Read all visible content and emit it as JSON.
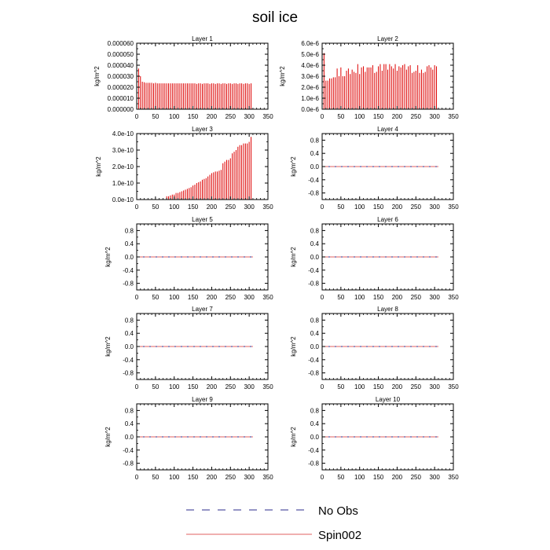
{
  "title": "soil ice",
  "legend": {
    "placement": "bottom-center",
    "items": [
      {
        "label": "No Obs",
        "color": "#2b2b8c",
        "style": "dashed"
      },
      {
        "label": "Spin002",
        "color": "#e06060",
        "style": "solid"
      }
    ]
  },
  "chart_data": [
    {
      "type": "bar",
      "title": "Layer 1",
      "ylabel": "kg/m^2",
      "xlim": [
        0,
        350
      ],
      "xticks": [
        "0",
        "50",
        "100",
        "150",
        "200",
        "250",
        "300",
        "350"
      ],
      "ylim": [
        0,
        6e-05
      ],
      "yticks": [
        "0.000000",
        "0.000010",
        "0.000020",
        "0.000030",
        "0.000040",
        "0.000050",
        "0.000060"
      ],
      "bar_x_start": 0,
      "bar_x_step": 5,
      "bar_color": "#dd0000",
      "values": [
        5.2e-05,
        3.7e-05,
        3e-05,
        2.5e-05,
        2.45e-05,
        2.4e-05,
        2.4e-05,
        2.4e-05,
        2.4e-05,
        2.35e-05,
        2.4e-05,
        2.35e-05,
        2.35e-05,
        2.35e-05,
        2.35e-05,
        2.35e-05,
        2.35e-05,
        2.35e-05,
        2.35e-05,
        2.35e-05,
        2.35e-05,
        2.35e-05,
        2.35e-05,
        2.35e-05,
        2.35e-05,
        2.35e-05,
        2.35e-05,
        2.35e-05,
        2.35e-05,
        2.35e-05,
        2.35e-05,
        2.35e-05,
        2.3e-05,
        2.35e-05,
        2.35e-05,
        2.3e-05,
        2.35e-05,
        2.35e-05,
        2.35e-05,
        2.3e-05,
        2.35e-05,
        2.35e-05,
        2.3e-05,
        2.35e-05,
        2.35e-05,
        2.3e-05,
        2.35e-05,
        2.35e-05,
        2.3e-05,
        2.35e-05,
        2.35e-05,
        2.3e-05,
        2.35e-05,
        2.35e-05,
        2.3e-05,
        2.35e-05,
        2.35e-05,
        2.3e-05,
        2.35e-05,
        2.35e-05,
        2.3e-05,
        2.35e-05
      ]
    },
    {
      "type": "bar",
      "title": "Layer 2",
      "ylabel": "kg/m^2",
      "xlim": [
        0,
        350
      ],
      "xticks": [
        "0",
        "50",
        "100",
        "150",
        "200",
        "250",
        "300",
        "350"
      ],
      "ylim": [
        0,
        6e-06
      ],
      "yticks": [
        "0.0e-6",
        "1.0e-6",
        "2.0e-6",
        "3.0e-6",
        "4.0e-6",
        "5.0e-6",
        "6.0e-6"
      ],
      "bar_x_start": 0,
      "bar_x_step": 5,
      "bar_color": "#dd0000",
      "values": [
        5.2e-06,
        5.1e-06,
        2.6e-06,
        2.6e-06,
        2.8e-06,
        2.8e-06,
        2.9e-06,
        2.9e-06,
        3.7e-06,
        3e-06,
        3.8e-06,
        3e-06,
        3e-06,
        3.5e-06,
        3.7e-06,
        3.2e-06,
        3.6e-06,
        3.4e-06,
        3.3e-06,
        4.1e-06,
        3.2e-06,
        3.8e-06,
        3.9e-06,
        3.4e-06,
        3.8e-06,
        3.8e-06,
        3.8e-06,
        4e-06,
        3.3e-06,
        3.4e-06,
        3.9e-06,
        4.1e-06,
        3.5e-06,
        4.1e-06,
        4.1e-06,
        3.6e-06,
        4.1e-06,
        3.9e-06,
        3.7e-06,
        4.1e-06,
        3.5e-06,
        3.9e-06,
        3.8e-06,
        4e-06,
        4.1e-06,
        3.6e-06,
        3.9e-06,
        4e-06,
        3.3e-06,
        3.4e-06,
        3.5e-06,
        4e-06,
        3.3e-06,
        3.6e-06,
        3.3e-06,
        3.4e-06,
        3.9e-06,
        4e-06,
        3.8e-06,
        3.6e-06,
        4e-06,
        3.9e-06
      ]
    },
    {
      "type": "bar",
      "title": "Layer 3",
      "ylabel": "kg/m^2",
      "xlim": [
        0,
        350
      ],
      "xticks": [
        "0",
        "50",
        "100",
        "150",
        "200",
        "250",
        "300",
        "350"
      ],
      "ylim": [
        0,
        4e-10
      ],
      "yticks": [
        "0.0e-10",
        "1.0e-10",
        "2.0e-10",
        "3.0e-10",
        "4.0e-10"
      ],
      "bar_x_start": 0,
      "bar_x_step": 5,
      "bar_color": "#dd0000",
      "values": [
        0,
        0,
        0,
        0,
        0,
        0,
        0,
        0,
        0,
        0,
        0,
        0,
        0,
        0,
        0,
        0,
        2e-11,
        2e-11,
        2.5e-11,
        3e-11,
        3e-11,
        4e-11,
        4e-11,
        4.5e-11,
        5e-11,
        5.5e-11,
        6e-11,
        6.5e-11,
        7e-11,
        7.5e-11,
        8.5e-11,
        9e-11,
        1e-10,
        1.05e-10,
        1.1e-10,
        1.2e-10,
        1.25e-10,
        1.3e-10,
        1.4e-10,
        1.5e-10,
        1.6e-10,
        1.65e-10,
        1.7e-10,
        1.7e-10,
        1.75e-10,
        1.8e-10,
        2.2e-10,
        2.3e-10,
        2.4e-10,
        2.4e-10,
        2.5e-10,
        2.8e-10,
        2.9e-10,
        3e-10,
        3.2e-10,
        3.3e-10,
        3.3e-10,
        3.4e-10,
        3.4e-10,
        3.4e-10,
        3.5e-10,
        3.8e-10
      ]
    },
    {
      "type": "line",
      "title": "Layer 4",
      "ylabel": "kg/m^2",
      "xlim": [
        0,
        350
      ],
      "xticks": [
        "0",
        "50",
        "100",
        "150",
        "200",
        "250",
        "300",
        "350"
      ],
      "ylim": [
        -1.0,
        1.0
      ],
      "yticks": [
        "-0.8",
        "-0.4",
        "0.0",
        "0.4",
        "0.8"
      ],
      "series": [
        {
          "x": [
            0,
            310
          ],
          "y": [
            0,
            0
          ],
          "color": "#e06060",
          "style": "solid"
        },
        {
          "x": [
            0,
            310
          ],
          "y": [
            0,
            0
          ],
          "color": "#2b2b8c",
          "style": "dashed"
        }
      ]
    },
    {
      "type": "line",
      "title": "Layer 5",
      "ylabel": "kg/m^2",
      "xlim": [
        0,
        350
      ],
      "xticks": [
        "0",
        "50",
        "100",
        "150",
        "200",
        "250",
        "300",
        "350"
      ],
      "ylim": [
        -1.0,
        1.0
      ],
      "yticks": [
        "-0.8",
        "-0.4",
        "0.0",
        "0.4",
        "0.8"
      ],
      "series": [
        {
          "x": [
            0,
            310
          ],
          "y": [
            0,
            0
          ],
          "color": "#e06060",
          "style": "solid"
        },
        {
          "x": [
            0,
            310
          ],
          "y": [
            0,
            0
          ],
          "color": "#2b2b8c",
          "style": "dashed"
        }
      ]
    },
    {
      "type": "line",
      "title": "Layer 6",
      "ylabel": "kg/m^2",
      "xlim": [
        0,
        350
      ],
      "xticks": [
        "0",
        "50",
        "100",
        "150",
        "200",
        "250",
        "300",
        "350"
      ],
      "ylim": [
        -1.0,
        1.0
      ],
      "yticks": [
        "-0.8",
        "-0.4",
        "0.0",
        "0.4",
        "0.8"
      ],
      "series": [
        {
          "x": [
            0,
            310
          ],
          "y": [
            0,
            0
          ],
          "color": "#e06060",
          "style": "solid"
        },
        {
          "x": [
            0,
            310
          ],
          "y": [
            0,
            0
          ],
          "color": "#2b2b8c",
          "style": "dashed"
        }
      ]
    },
    {
      "type": "line",
      "title": "Layer 7",
      "ylabel": "kg/m^2",
      "xlim": [
        0,
        350
      ],
      "xticks": [
        "0",
        "50",
        "100",
        "150",
        "200",
        "250",
        "300",
        "350"
      ],
      "ylim": [
        -1.0,
        1.0
      ],
      "yticks": [
        "-0.8",
        "-0.4",
        "0.0",
        "0.4",
        "0.8"
      ],
      "series": [
        {
          "x": [
            0,
            310
          ],
          "y": [
            0,
            0
          ],
          "color": "#e06060",
          "style": "solid"
        },
        {
          "x": [
            0,
            310
          ],
          "y": [
            0,
            0
          ],
          "color": "#2b2b8c",
          "style": "dashed"
        }
      ]
    },
    {
      "type": "line",
      "title": "Layer 8",
      "ylabel": "kg/m^2",
      "xlim": [
        0,
        350
      ],
      "xticks": [
        "0",
        "50",
        "100",
        "150",
        "200",
        "250",
        "300",
        "350"
      ],
      "ylim": [
        -1.0,
        1.0
      ],
      "yticks": [
        "-0.8",
        "-0.4",
        "0.0",
        "0.4",
        "0.8"
      ],
      "series": [
        {
          "x": [
            0,
            310
          ],
          "y": [
            0,
            0
          ],
          "color": "#e06060",
          "style": "solid"
        },
        {
          "x": [
            0,
            310
          ],
          "y": [
            0,
            0
          ],
          "color": "#2b2b8c",
          "style": "dashed"
        }
      ]
    },
    {
      "type": "line",
      "title": "Layer 9",
      "ylabel": "kg/m^2",
      "xlim": [
        0,
        350
      ],
      "xticks": [
        "0",
        "50",
        "100",
        "150",
        "200",
        "250",
        "300",
        "350"
      ],
      "ylim": [
        -1.0,
        1.0
      ],
      "yticks": [
        "-0.8",
        "-0.4",
        "0.0",
        "0.4",
        "0.8"
      ],
      "series": [
        {
          "x": [
            0,
            310
          ],
          "y": [
            0,
            0
          ],
          "color": "#e06060",
          "style": "solid"
        },
        {
          "x": [
            0,
            310
          ],
          "y": [
            0,
            0
          ],
          "color": "#2b2b8c",
          "style": "dashed"
        }
      ]
    },
    {
      "type": "line",
      "title": "Layer 10",
      "ylabel": "kg/m^2",
      "xlim": [
        0,
        350
      ],
      "xticks": [
        "0",
        "50",
        "100",
        "150",
        "200",
        "250",
        "300",
        "350"
      ],
      "ylim": [
        -1.0,
        1.0
      ],
      "yticks": [
        "-0.8",
        "-0.4",
        "0.0",
        "0.4",
        "0.8"
      ],
      "series": [
        {
          "x": [
            0,
            310
          ],
          "y": [
            0,
            0
          ],
          "color": "#e06060",
          "style": "solid"
        },
        {
          "x": [
            0,
            310
          ],
          "y": [
            0,
            0
          ],
          "color": "#2b2b8c",
          "style": "dashed"
        }
      ]
    }
  ]
}
